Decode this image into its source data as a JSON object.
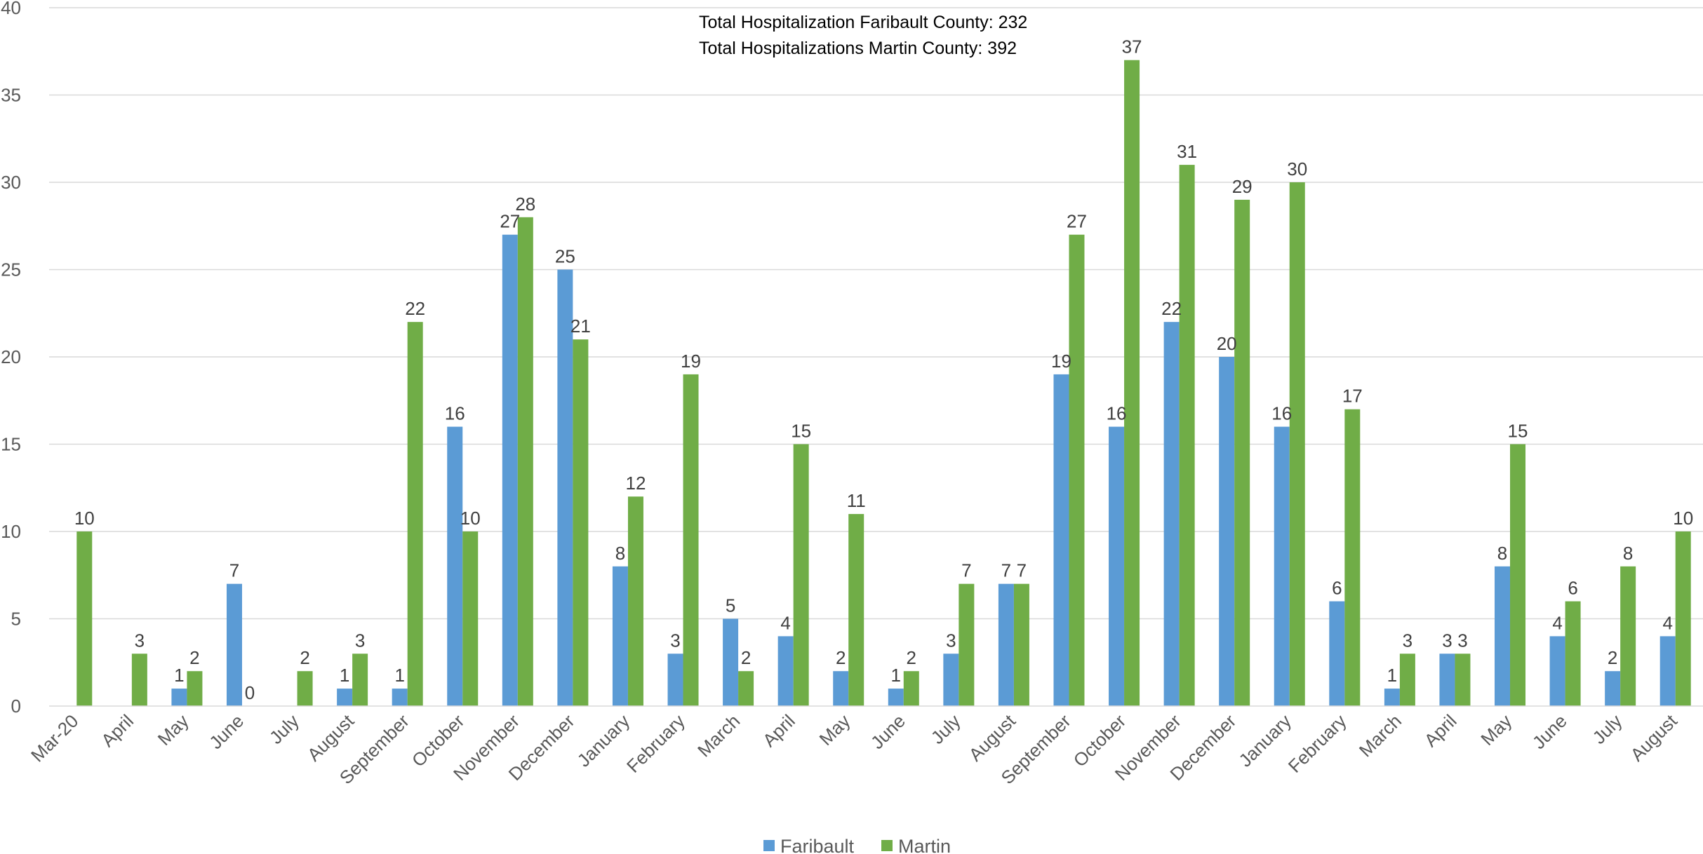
{
  "chart_data": {
    "type": "bar",
    "title": "",
    "xlabel": "",
    "ylabel": "",
    "annotations": [
      "Total Hospitalization Faribault County: 232",
      "Total Hospitalizations Martin County: 392"
    ],
    "categories": [
      "Mar-20",
      "April",
      "May",
      "June",
      "July",
      "August",
      "September",
      "October",
      "November",
      "December",
      "January",
      "February",
      "March",
      "April",
      "May",
      "June",
      "July",
      "August",
      "September",
      "October",
      "November",
      "December",
      "January",
      "February",
      "March",
      "April",
      "May",
      "June",
      "July",
      "August"
    ],
    "series": [
      {
        "name": "Faribault",
        "color": "#5B9BD5",
        "values": [
          null,
          null,
          1,
          7,
          null,
          1,
          1,
          16,
          27,
          25,
          8,
          3,
          5,
          4,
          2,
          1,
          3,
          7,
          19,
          16,
          22,
          20,
          16,
          6,
          1,
          3,
          8,
          4,
          2,
          4
        ]
      },
      {
        "name": "Martin",
        "color": "#70AD47",
        "values": [
          10,
          3,
          2,
          0,
          2,
          3,
          22,
          10,
          28,
          21,
          12,
          19,
          2,
          15,
          11,
          2,
          7,
          7,
          27,
          37,
          31,
          29,
          30,
          17,
          3,
          3,
          15,
          6,
          8,
          10
        ]
      }
    ],
    "ylim": [
      0,
      40
    ],
    "yticks": [
      0,
      5,
      10,
      15,
      20,
      25,
      30,
      35,
      40
    ],
    "grid": true,
    "legend_position": "bottom"
  }
}
